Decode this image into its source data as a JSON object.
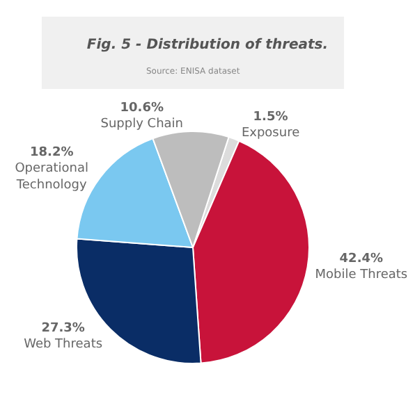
{
  "chart_data": {
    "type": "pie",
    "title": "Fig. 5 - Distribution of threats.",
    "subtitle": "Source: ENISA dataset",
    "categories": [
      "Exposure",
      "Mobile Threats",
      "Web Threats",
      "Operational Technology",
      "Supply Chain"
    ],
    "values": [
      1.5,
      42.4,
      27.3,
      18.2,
      10.6
    ],
    "colors": [
      "#dcdcdc",
      "#c8133a",
      "#0a2d66",
      "#7ac8f0",
      "#bdbdbd"
    ],
    "value_labels": [
      "1.5%",
      "42.4%",
      "27.3%",
      "18.2%",
      "10.6%"
    ]
  }
}
